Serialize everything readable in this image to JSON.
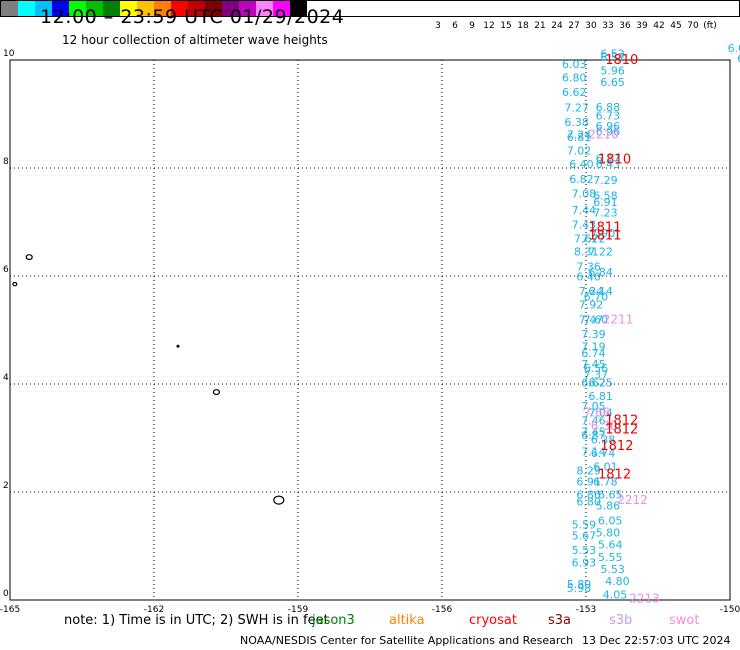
{
  "header": {
    "title": "12:00  –  23:59 UTC 01/29/2024",
    "subtitle": "12 hour collection of altimeter wave heights"
  },
  "colorbar": {
    "colors": [
      "#7f7f7f",
      "#00ffff",
      "#00c0ff",
      "#0000ff",
      "#00ff00",
      "#00c000",
      "#008000",
      "#ffff00",
      "#ffc000",
      "#ff8000",
      "#ff0000",
      "#c00000",
      "#800000",
      "#800080",
      "#c000c0",
      "#ff80ff",
      "#ff00ff",
      "#000000"
    ],
    "labels": [
      "3",
      "6",
      "9",
      "12",
      "15",
      "18",
      "21",
      "24",
      "27",
      "30",
      "33",
      "36",
      "39",
      "42",
      "45",
      "70",
      "(ft)"
    ]
  },
  "axes": {
    "x_ticks": [
      "-165",
      "-162",
      "-159",
      "-156",
      "-153",
      "-150"
    ],
    "y_ticks": [
      "0",
      "2",
      "4",
      "6",
      "8",
      "10"
    ]
  },
  "obs": {
    "cyan": [
      {
        "t": "6.03",
        "lon": -153.5,
        "lat": 9.85
      },
      {
        "t": "6.80",
        "lon": -153.5,
        "lat": 9.6
      },
      {
        "t": "6.62",
        "lon": -153.5,
        "lat": 9.33
      },
      {
        "t": "7.27",
        "lon": -153.45,
        "lat": 9.05
      },
      {
        "t": "6.38",
        "lon": -153.45,
        "lat": 8.78
      },
      {
        "t": "7.24",
        "lon": -153.4,
        "lat": 8.55
      },
      {
        "t": "6.81",
        "lon": -153.4,
        "lat": 8.5
      },
      {
        "t": "7.02",
        "lon": -153.4,
        "lat": 8.25
      },
      {
        "t": "6.40",
        "lon": -153.35,
        "lat": 8.0
      },
      {
        "t": "6.82",
        "lon": -153.35,
        "lat": 7.72
      },
      {
        "t": "7.08",
        "lon": -153.3,
        "lat": 7.45
      },
      {
        "t": "7.44",
        "lon": -153.3,
        "lat": 7.15
      },
      {
        "t": "7.43",
        "lon": -153.3,
        "lat": 6.88
      },
      {
        "t": "7.62",
        "lon": -153.25,
        "lat": 6.62
      },
      {
        "t": "7.72",
        "lon": -153.1,
        "lat": 6.62
      },
      {
        "t": "8.31",
        "lon": -153.25,
        "lat": 6.38
      },
      {
        "t": "7.22",
        "lon": -152.95,
        "lat": 6.38
      },
      {
        "t": "7.36",
        "lon": -153.2,
        "lat": 6.1
      },
      {
        "t": "6.40",
        "lon": -153.2,
        "lat": 5.92
      },
      {
        "t": "6.84",
        "lon": -152.95,
        "lat": 6.0
      },
      {
        "t": "7.24",
        "lon": -153.15,
        "lat": 5.65
      },
      {
        "t": "6.14",
        "lon": -152.95,
        "lat": 5.65
      },
      {
        "t": "6.70",
        "lon": -153.05,
        "lat": 5.55
      },
      {
        "t": "7.92",
        "lon": -153.15,
        "lat": 5.4
      },
      {
        "t": "7.47",
        "lon": -153.15,
        "lat": 5.12
      },
      {
        "t": "7.60",
        "lon": -153.05,
        "lat": 5.12
      },
      {
        "t": "7.39",
        "lon": -153.1,
        "lat": 4.85
      },
      {
        "t": "7.19",
        "lon": -153.1,
        "lat": 4.62
      },
      {
        "t": "6.74",
        "lon": -153.1,
        "lat": 4.5
      },
      {
        "t": "7.45",
        "lon": -153.1,
        "lat": 4.3
      },
      {
        "t": "6.56",
        "lon": -153.05,
        "lat": 4.22
      },
      {
        "t": "7.37",
        "lon": -153.05,
        "lat": 4.1
      },
      {
        "t": "6.62",
        "lon": -153.1,
        "lat": 3.95
      },
      {
        "t": "6.25",
        "lon": -152.95,
        "lat": 3.95
      },
      {
        "t": "6.81",
        "lon": -152.95,
        "lat": 3.7
      },
      {
        "t": "7.05",
        "lon": -153.1,
        "lat": 3.52
      },
      {
        "t": "7.04",
        "lon": -152.95,
        "lat": 3.4
      },
      {
        "t": "7.46",
        "lon": -153.1,
        "lat": 3.25
      },
      {
        "t": "7.45",
        "lon": -153.1,
        "lat": 3.05
      },
      {
        "t": "6.87",
        "lon": -153.1,
        "lat": 2.98
      },
      {
        "t": "6.38",
        "lon": -152.9,
        "lat": 2.9
      },
      {
        "t": "7.14",
        "lon": -153.1,
        "lat": 2.68
      },
      {
        "t": "6.74",
        "lon": -152.9,
        "lat": 2.65
      },
      {
        "t": "6.01",
        "lon": -152.85,
        "lat": 2.4
      },
      {
        "t": "8.29",
        "lon": -153.2,
        "lat": 2.32
      },
      {
        "t": "6.91",
        "lon": -153.2,
        "lat": 2.12
      },
      {
        "t": "6.78",
        "lon": -152.85,
        "lat": 2.12
      },
      {
        "t": "6.86",
        "lon": -153.2,
        "lat": 1.88
      },
      {
        "t": "6.65",
        "lon": -152.75,
        "lat": 1.88
      },
      {
        "t": "6.80",
        "lon": -153.2,
        "lat": 1.75
      },
      {
        "t": "5.86",
        "lon": -152.8,
        "lat": 1.68
      },
      {
        "t": "6.05",
        "lon": -152.75,
        "lat": 1.4
      },
      {
        "t": "5.59",
        "lon": -153.3,
        "lat": 1.32
      },
      {
        "t": "5.80",
        "lon": -152.8,
        "lat": 1.18
      },
      {
        "t": "5.67",
        "lon": -153.3,
        "lat": 1.12
      },
      {
        "t": "5.64",
        "lon": -152.75,
        "lat": 0.95
      },
      {
        "t": "5.53",
        "lon": -153.3,
        "lat": 0.85
      },
      {
        "t": "5.55",
        "lon": -152.75,
        "lat": 0.72
      },
      {
        "t": "6.93",
        "lon": -153.3,
        "lat": 0.62
      },
      {
        "t": "5.53",
        "lon": -152.7,
        "lat": 0.5
      },
      {
        "t": "4.80",
        "lon": -152.6,
        "lat": 0.28
      },
      {
        "t": "5.80",
        "lon": -153.4,
        "lat": 0.22
      },
      {
        "t": "5.98",
        "lon": -153.4,
        "lat": 0.15
      },
      {
        "t": "4.05",
        "lon": -152.65,
        "lat": 0.03
      },
      {
        "t": "6.52",
        "lon": -152.7,
        "lat": 10.05
      },
      {
        "t": "6.57",
        "lon": -152.7,
        "lat": 9.98
      },
      {
        "t": "5.96",
        "lon": -152.7,
        "lat": 9.73
      },
      {
        "t": "6.65",
        "lon": -152.7,
        "lat": 9.52
      },
      {
        "t": "6.88",
        "lon": -152.8,
        "lat": 9.06
      },
      {
        "t": "6.73",
        "lon": -152.8,
        "lat": 8.9
      },
      {
        "t": "6.96",
        "lon": -152.8,
        "lat": 8.7
      },
      {
        "t": "6.96",
        "lon": -152.8,
        "lat": 8.6
      },
      {
        "t": "6.27",
        "lon": -152.8,
        "lat": 8.1
      },
      {
        "t": "6.43",
        "lon": -152.8,
        "lat": 8.0
      },
      {
        "t": "7.29",
        "lon": -152.85,
        "lat": 7.7
      },
      {
        "t": "6.58",
        "lon": -152.85,
        "lat": 7.42
      },
      {
        "t": "6.91",
        "lon": -152.85,
        "lat": 7.3
      },
      {
        "t": "7.23",
        "lon": -152.85,
        "lat": 7.1
      },
      {
        "t": "7.90",
        "lon": -152.9,
        "lat": 6.72
      },
      {
        "t": "6.0",
        "lon": -150.05,
        "lat": 10.15
      },
      {
        "t": "6.9",
        "lon": -149.85,
        "lat": 9.95
      },
      {
        "t": "6.",
        "lon": -149.8,
        "lat": 9.7
      },
      {
        "t": "6",
        "lon": -149.8,
        "lat": 9.45
      }
    ],
    "red": [
      {
        "t": "1810",
        "lon": -152.6,
        "lat": 9.93
      },
      {
        "t": "1810",
        "lon": -152.75,
        "lat": 8.08
      },
      {
        "t": "1811",
        "lon": -152.95,
        "lat": 6.82
      },
      {
        "t": "1811",
        "lon": -152.95,
        "lat": 6.68
      },
      {
        "t": "1812",
        "lon": -152.6,
        "lat": 3.25
      },
      {
        "t": "1812",
        "lon": -152.6,
        "lat": 3.08
      },
      {
        "t": "1812",
        "lon": -152.7,
        "lat": 2.78
      },
      {
        "t": "1812",
        "lon": -152.75,
        "lat": 2.25
      }
    ],
    "pink": [
      {
        "t": "2210",
        "lon": -152.95,
        "lat": 8.55
      },
      {
        "t": "2211",
        "lon": -152.65,
        "lat": 5.12
      },
      {
        "t": "2212",
        "lon": -152.35,
        "lat": 1.78
      },
      {
        "t": "2213",
        "lon": -152.1,
        "lat": -0.05
      },
      {
        "t": "7.66",
        "lon": -153.05,
        "lat": 3.4
      },
      {
        "t": "6.30",
        "lon": -152.9,
        "lat": 3.15
      }
    ]
  },
  "colors": {
    "cyan_obs": "#1eb4e6",
    "red_obs": "#ee0000",
    "pink_obs": "#f08ce6",
    "grid": "#000000"
  },
  "footer": {
    "note": "note:  1) Time is in UTC;  2) SWH is in feet",
    "satellites": [
      {
        "name": "jason3",
        "color": "#008000"
      },
      {
        "name": "altika",
        "color": "#ff8000"
      },
      {
        "name": "cryosat",
        "color": "#ff0000"
      },
      {
        "name": "s3a",
        "color": "#800000"
      },
      {
        "name": "s3b",
        "color": "#c8a0e6"
      },
      {
        "name": "swot",
        "color": "#f08ce6"
      }
    ],
    "credit": "NOAA/NESDIS Center for Satellite Applications and Research",
    "timestamp": "13 Dec 22:57:03 UTC 2024"
  }
}
